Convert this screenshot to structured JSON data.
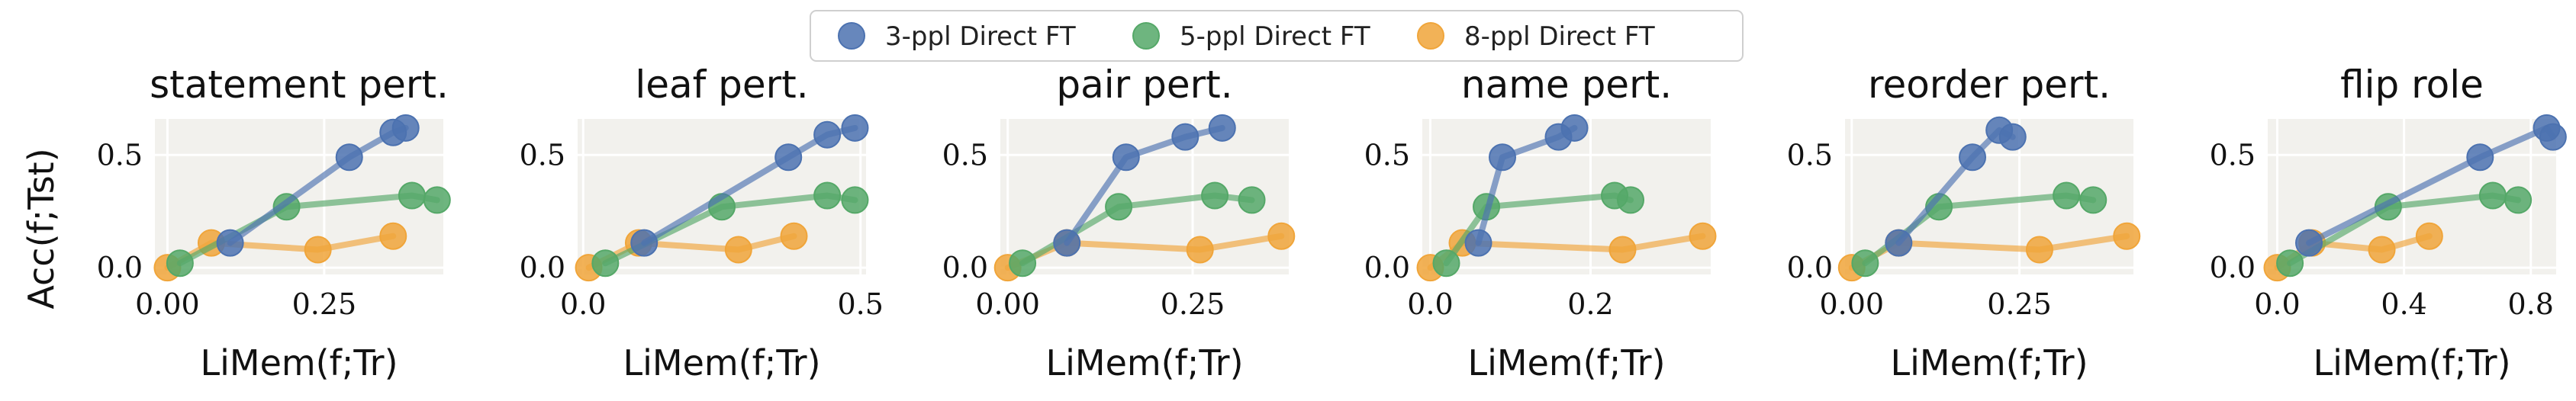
{
  "legend": {
    "placement": "top-center",
    "entries": [
      {
        "label": "3-ppl Direct FT",
        "color": "#4c72b0"
      },
      {
        "label": "5-ppl Direct FT",
        "color": "#55a868"
      },
      {
        "label": "8-ppl Direct FT",
        "color": "#f0a53a"
      }
    ]
  },
  "ylabel": "Acc(f;Tst)",
  "chart_data": [
    {
      "type": "line",
      "title": "statement pert.",
      "xlabel": "LiMem(f;Tr)",
      "xlim": [
        -0.02,
        0.44
      ],
      "ylim": [
        -0.03,
        0.66
      ],
      "xticks": [
        0.0,
        0.25
      ],
      "xticklabels": [
        "0.00",
        "0.25"
      ],
      "yticks": [
        0.0,
        0.5
      ],
      "yticklabels": [
        "0.0",
        "0.5"
      ],
      "grid": true,
      "series": [
        {
          "name": "3-ppl Direct FT",
          "points": [
            [
              0.1,
              0.11
            ],
            [
              0.29,
              0.49
            ],
            [
              0.36,
              0.6
            ],
            [
              0.38,
              0.62
            ]
          ]
        },
        {
          "name": "5-ppl Direct FT",
          "points": [
            [
              0.02,
              0.02
            ],
            [
              0.19,
              0.27
            ],
            [
              0.39,
              0.32
            ],
            [
              0.43,
              0.3
            ]
          ]
        },
        {
          "name": "8-ppl Direct FT",
          "points": [
            [
              0.0,
              0.0
            ],
            [
              0.07,
              0.11
            ],
            [
              0.24,
              0.08
            ],
            [
              0.36,
              0.14
            ]
          ]
        }
      ]
    },
    {
      "type": "line",
      "title": "leaf pert.",
      "xlabel": "LiMem(f;Tr)",
      "xlim": [
        -0.01,
        0.51
      ],
      "ylim": [
        -0.03,
        0.66
      ],
      "xticks": [
        0.0,
        0.5
      ],
      "xticklabels": [
        "0.0",
        "0.5"
      ],
      "yticks": [
        0.0,
        0.5
      ],
      "yticklabels": [
        "0.0",
        "0.5"
      ],
      "grid": true,
      "series": [
        {
          "name": "3-ppl Direct FT",
          "points": [
            [
              0.11,
              0.11
            ],
            [
              0.37,
              0.49
            ],
            [
              0.44,
              0.59
            ],
            [
              0.49,
              0.62
            ]
          ]
        },
        {
          "name": "5-ppl Direct FT",
          "points": [
            [
              0.04,
              0.02
            ],
            [
              0.25,
              0.27
            ],
            [
              0.44,
              0.32
            ],
            [
              0.49,
              0.3
            ]
          ]
        },
        {
          "name": "8-ppl Direct FT",
          "points": [
            [
              0.01,
              0.0
            ],
            [
              0.1,
              0.11
            ],
            [
              0.28,
              0.08
            ],
            [
              0.38,
              0.14
            ]
          ]
        }
      ]
    },
    {
      "type": "line",
      "title": "pair pert.",
      "xlabel": "LiMem(f;Tr)",
      "xlim": [
        -0.01,
        0.38
      ],
      "ylim": [
        -0.03,
        0.66
      ],
      "xticks": [
        0.0,
        0.25
      ],
      "xticklabels": [
        "0.00",
        "0.25"
      ],
      "yticks": [
        0.0,
        0.5
      ],
      "yticklabels": [
        "0.0",
        "0.5"
      ],
      "grid": true,
      "series": [
        {
          "name": "3-ppl Direct FT",
          "points": [
            [
              0.08,
              0.11
            ],
            [
              0.16,
              0.49
            ],
            [
              0.24,
              0.58
            ],
            [
              0.29,
              0.62
            ]
          ]
        },
        {
          "name": "5-ppl Direct FT",
          "points": [
            [
              0.02,
              0.02
            ],
            [
              0.15,
              0.27
            ],
            [
              0.28,
              0.32
            ],
            [
              0.33,
              0.3
            ]
          ]
        },
        {
          "name": "8-ppl Direct FT",
          "points": [
            [
              0.0,
              0.0
            ],
            [
              0.08,
              0.11
            ],
            [
              0.26,
              0.08
            ],
            [
              0.37,
              0.14
            ]
          ]
        }
      ]
    },
    {
      "type": "line",
      "title": "name pert.",
      "xlabel": "LiMem(f;Tr)",
      "xlim": [
        -0.01,
        0.35
      ],
      "ylim": [
        -0.03,
        0.66
      ],
      "xticks": [
        0.0,
        0.2
      ],
      "xticklabels": [
        "0.0",
        "0.2"
      ],
      "yticks": [
        0.0,
        0.5
      ],
      "yticklabels": [
        "0.0",
        "0.5"
      ],
      "grid": true,
      "series": [
        {
          "name": "3-ppl Direct FT",
          "points": [
            [
              0.06,
              0.11
            ],
            [
              0.09,
              0.49
            ],
            [
              0.16,
              0.58
            ],
            [
              0.18,
              0.62
            ]
          ]
        },
        {
          "name": "5-ppl Direct FT",
          "points": [
            [
              0.02,
              0.02
            ],
            [
              0.07,
              0.27
            ],
            [
              0.23,
              0.32
            ],
            [
              0.25,
              0.3
            ]
          ]
        },
        {
          "name": "8-ppl Direct FT",
          "points": [
            [
              0.0,
              0.0
            ],
            [
              0.04,
              0.11
            ],
            [
              0.24,
              0.08
            ],
            [
              0.34,
              0.14
            ]
          ]
        }
      ]
    },
    {
      "type": "line",
      "title": "reorder pert.",
      "xlabel": "LiMem(f;Tr)",
      "xlim": [
        -0.01,
        0.42
      ],
      "ylim": [
        -0.03,
        0.66
      ],
      "xticks": [
        0.0,
        0.25
      ],
      "xticklabels": [
        "0.00",
        "0.25"
      ],
      "yticks": [
        0.0,
        0.5
      ],
      "yticklabels": [
        "0.0",
        "0.5"
      ],
      "grid": true,
      "series": [
        {
          "name": "3-ppl Direct FT",
          "points": [
            [
              0.07,
              0.11
            ],
            [
              0.18,
              0.49
            ],
            [
              0.22,
              0.61
            ],
            [
              0.24,
              0.58
            ]
          ]
        },
        {
          "name": "5-ppl Direct FT",
          "points": [
            [
              0.02,
              0.02
            ],
            [
              0.13,
              0.27
            ],
            [
              0.32,
              0.32
            ],
            [
              0.36,
              0.3
            ]
          ]
        },
        {
          "name": "8-ppl Direct FT",
          "points": [
            [
              0.0,
              0.0
            ],
            [
              0.07,
              0.11
            ],
            [
              0.28,
              0.08
            ],
            [
              0.41,
              0.14
            ]
          ]
        }
      ]
    },
    {
      "type": "line",
      "title": "flip role",
      "xlabel": "LiMem(f;Tr)",
      "xlim": [
        -0.03,
        0.88
      ],
      "ylim": [
        -0.03,
        0.66
      ],
      "xticks": [
        0.0,
        0.4,
        0.8
      ],
      "xticklabels": [
        "0.0",
        "0.4",
        "0.8"
      ],
      "yticks": [
        0.0,
        0.5
      ],
      "yticklabels": [
        "0.0",
        "0.5"
      ],
      "grid": true,
      "series": [
        {
          "name": "3-ppl Direct FT",
          "points": [
            [
              0.1,
              0.11
            ],
            [
              0.64,
              0.49
            ],
            [
              0.85,
              0.62
            ],
            [
              0.87,
              0.58
            ]
          ]
        },
        {
          "name": "5-ppl Direct FT",
          "points": [
            [
              0.04,
              0.02
            ],
            [
              0.35,
              0.27
            ],
            [
              0.68,
              0.32
            ],
            [
              0.76,
              0.3
            ]
          ]
        },
        {
          "name": "8-ppl Direct FT",
          "points": [
            [
              0.0,
              0.0
            ],
            [
              0.11,
              0.11
            ],
            [
              0.33,
              0.08
            ],
            [
              0.48,
              0.14
            ]
          ]
        }
      ]
    }
  ]
}
